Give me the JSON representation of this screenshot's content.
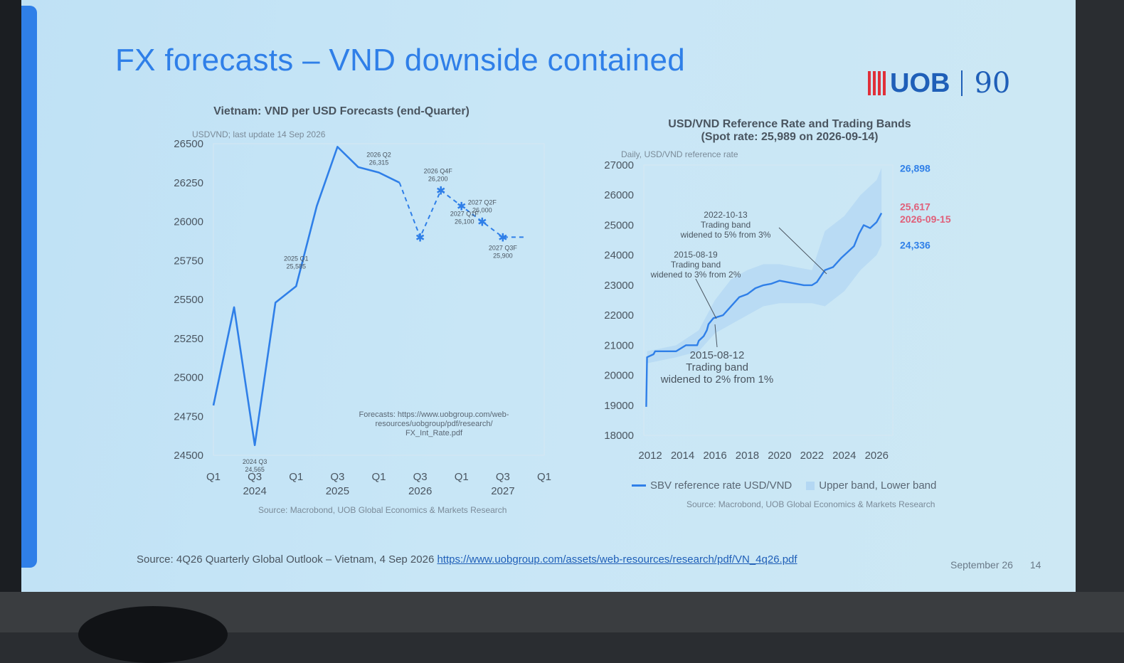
{
  "slide": {
    "title": "FX forecasts –  VND downside contained",
    "logo_text": "UOB",
    "logo_90": "90",
    "footer_prefix": "Source: 4Q26 Quarterly Global Outlook – Vietnam, 4 Sep 2026 ",
    "footer_link": "https://www.uobgroup.com/assets/web-resources/research/pdf/VN_4q26.pdf",
    "date": "September 26",
    "page": "14",
    "colors": {
      "accent": "#2f7fe8",
      "logo_red": "#e0303a",
      "logo_blue": "#1f5fb8",
      "band": "#b3d7f3",
      "highlight_red": "#e0607a"
    }
  },
  "chart_data": [
    {
      "type": "line",
      "title": "Vietnam: VND per USD Forecasts (end-Quarter)",
      "subtitle": "USDVND; last update 14 Sep 2026",
      "ylim": [
        24500,
        26500
      ],
      "yticks": [
        "26500",
        "26250",
        "26000",
        "25750",
        "25500",
        "25250",
        "25000",
        "24750",
        "24500"
      ],
      "ytick_values": [
        26500,
        26250,
        26000,
        25750,
        25500,
        25250,
        25000,
        24750,
        24500
      ],
      "xticks": [
        "Q1",
        "Q3",
        "Q1",
        "Q3",
        "Q1",
        "Q3",
        "Q1",
        "Q3",
        "Q1"
      ],
      "xtick_positions": [
        0,
        2,
        4,
        6,
        8,
        10,
        12,
        14,
        16
      ],
      "xyears": [
        "2024",
        "2025",
        "2026",
        "2027"
      ],
      "xyear_positions": [
        2,
        6,
        10,
        14
      ],
      "series": [
        {
          "values": [
            [
              0,
              24820
            ],
            [
              1,
              25450
            ],
            [
              2,
              24565
            ],
            [
              3,
              25480
            ],
            [
              4,
              25585
            ],
            [
              5,
              26100
            ],
            [
              6,
              26480
            ],
            [
              7,
              26350
            ],
            [
              8,
              26315
            ],
            [
              9,
              26250
            ]
          ]
        },
        {
          "values": [
            [
              9,
              26250
            ],
            [
              10,
              25900
            ],
            [
              11,
              26200
            ],
            [
              12,
              26100
            ],
            [
              13,
              26000
            ],
            [
              14,
              25900
            ],
            [
              15,
              25900
            ]
          ]
        }
      ],
      "annotations": [
        {
          "label": "2024 Q3",
          "value": "24,565",
          "x": 2,
          "y": 24565
        },
        {
          "label": "2025 Q1",
          "value": "25,585",
          "x": 4,
          "y": 25585
        },
        {
          "label": "2026 Q2",
          "value": "26,315",
          "x": 8,
          "y": 26315
        },
        {
          "label": "2026 Q4F",
          "value": "26,200",
          "x": 11,
          "y": 26200
        },
        {
          "label": "2027 Q1F",
          "value": "26,100",
          "x": 12,
          "y": 26100
        },
        {
          "label": "2027 Q2F",
          "value": "26,000",
          "x": 13,
          "y": 26000
        },
        {
          "label": "2027 Q3F",
          "value": "25,900",
          "x": 14,
          "y": 25900
        }
      ],
      "forecast_note": [
        "Forecasts: https://www.uobgroup.com/web-",
        "resources/uobgroup/pdf/research/",
        "FX_Int_Rate.pdf"
      ],
      "source": "Source: Macrobond, UOB Global Economics & Markets Research"
    },
    {
      "type": "line",
      "title": "USD/VND Reference Rate and Trading Bands",
      "title2": "(Spot rate: 25,989 on 2026-09-14)",
      "subtitle": "Daily, USD/VND reference rate",
      "ylim": [
        18000,
        27000
      ],
      "yticks": [
        "27000",
        "26000",
        "25000",
        "24000",
        "23000",
        "22000",
        "21000",
        "20000",
        "19000",
        "18000"
      ],
      "ytick_values": [
        27000,
        26000,
        25000,
        24000,
        23000,
        22000,
        21000,
        20000,
        19000,
        18000
      ],
      "xlim": [
        2011.6,
        2027.0
      ],
      "xticks": [
        "2012",
        "2014",
        "2016",
        "2018",
        "2020",
        "2022",
        "2024",
        "2026"
      ],
      "xtick_values": [
        2012,
        2014,
        2016,
        2018,
        2020,
        2022,
        2024,
        2026
      ],
      "series": [
        {
          "name": "SBV reference rate USD/VND",
          "values": [
            [
              2011.75,
              18950
            ],
            [
              2011.8,
              20600
            ],
            [
              2012.2,
              20700
            ],
            [
              2012.3,
              20800
            ],
            [
              2013.6,
              20800
            ],
            [
              2014.2,
              21000
            ],
            [
              2014.9,
              21000
            ],
            [
              2015.0,
              21150
            ],
            [
              2015.3,
              21300
            ],
            [
              2015.5,
              21500
            ],
            [
              2015.6,
              21700
            ],
            [
              2015.9,
              21900
            ],
            [
              2016.5,
              22000
            ],
            [
              2017.0,
              22300
            ],
            [
              2017.5,
              22600
            ],
            [
              2018.0,
              22700
            ],
            [
              2018.5,
              22900
            ],
            [
              2019.0,
              23000
            ],
            [
              2019.5,
              23050
            ],
            [
              2020.0,
              23150
            ],
            [
              2020.5,
              23100
            ],
            [
              2021.0,
              23050
            ],
            [
              2021.5,
              23000
            ],
            [
              2022.0,
              23000
            ],
            [
              2022.3,
              23100
            ],
            [
              2022.8,
              23500
            ],
            [
              2023.3,
              23600
            ],
            [
              2023.8,
              23900
            ],
            [
              2024.2,
              24100
            ],
            [
              2024.6,
              24300
            ],
            [
              2024.9,
              24700
            ],
            [
              2025.2,
              25000
            ],
            [
              2025.6,
              24900
            ],
            [
              2026.0,
              25100
            ],
            [
              2026.3,
              25400
            ]
          ]
        }
      ],
      "band": {
        "name": "Upper band, Lower band",
        "upper": [
          [
            2011.8,
            20800
          ],
          [
            2013.6,
            21000
          ],
          [
            2015.0,
            21500
          ],
          [
            2016.0,
            22500
          ],
          [
            2017.0,
            23200
          ],
          [
            2018.0,
            23500
          ],
          [
            2019.0,
            23700
          ],
          [
            2020.0,
            23700
          ],
          [
            2021.0,
            23600
          ],
          [
            2022.0,
            23500
          ],
          [
            2022.8,
            24800
          ],
          [
            2024.0,
            25300
          ],
          [
            2025.0,
            26000
          ],
          [
            2026.0,
            26500
          ],
          [
            2026.3,
            26898
          ]
        ],
        "lower": [
          [
            2011.8,
            20400
          ],
          [
            2013.6,
            20600
          ],
          [
            2015.0,
            20800
          ],
          [
            2016.0,
            21400
          ],
          [
            2017.0,
            21700
          ],
          [
            2018.0,
            22000
          ],
          [
            2019.0,
            22300
          ],
          [
            2020.0,
            22400
          ],
          [
            2021.0,
            22400
          ],
          [
            2022.0,
            22400
          ],
          [
            2022.8,
            22300
          ],
          [
            2024.0,
            22800
          ],
          [
            2025.0,
            23500
          ],
          [
            2026.0,
            24000
          ],
          [
            2026.3,
            24336
          ]
        ]
      },
      "right_labels": [
        {
          "text": "26,898",
          "color": "#2f7fe8",
          "y": 26898
        },
        {
          "text": "25,617",
          "color": "#e0607a",
          "y": 25617
        },
        {
          "text": "2026-09-15",
          "color": "#e0607a",
          "y": 25200
        },
        {
          "text": "24,336",
          "color": "#2f7fe8",
          "y": 24336
        }
      ],
      "annotations": [
        {
          "lines": [
            "2022-10-13",
            "Trading band",
            "widened to 5% from 3%"
          ],
          "x": 2022.6,
          "y": 23350
        },
        {
          "lines": [
            "2015-08-19",
            "Trading band",
            "widened to 3% from 2%"
          ],
          "x": 2015.7,
          "y": 21800
        },
        {
          "lines": [
            "2015-08-12",
            "Trading band",
            "widened to 2% from 1%"
          ],
          "x": 2015.6,
          "y": 21300
        }
      ],
      "legend": [
        "SBV reference rate USD/VND",
        "Upper band, Lower band"
      ],
      "source": "Source: Macrobond, UOB Global Economics & Markets Research"
    }
  ]
}
